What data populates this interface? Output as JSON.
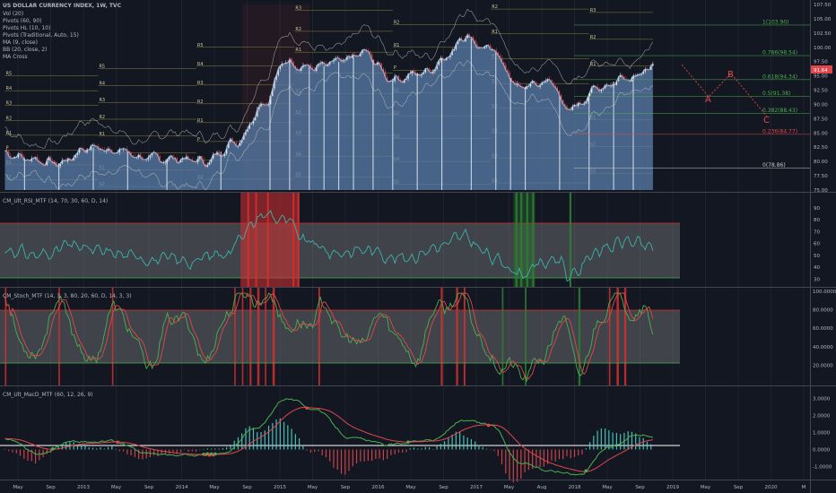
{
  "colors": {
    "background": "#131722",
    "grid": "#2a2e39",
    "price_fill": "#5a7eaa",
    "price_line": "#9cb6d6",
    "candle_up": "#e6e6e6",
    "candle_down": "#e0474c",
    "pivot_line": "#b5a642",
    "fib_green": "#4caf50",
    "fib_red": "#e0474c",
    "rsi_line": "#3bb3a9",
    "stoch_k": "#4caf50",
    "stoch_d": "#e0474c",
    "macd_line": "#4caf50",
    "signal_line": "#e0474c",
    "hist_up": "#4dd0c4",
    "hist_down": "#e0474c",
    "zone_red": "#d32f2f",
    "zone_green": "#2e7d32"
  },
  "header": {
    "title": "US DOLLAR CURRENCY INDEX, 1W, TVC",
    "indicators": [
      "Vol (20)",
      "Pivots (60, 90)",
      "Pivots HL (10, 10)",
      "Pivots (Traditional, Auto, 15)",
      "MA (9, close)",
      "BB (20, close, 2)",
      "MA Cross"
    ]
  },
  "panes": {
    "rsi_title": "CM_Ult_RSI_MTF (14, 70, 30, 60, D, 14)",
    "stoch_title": "CM_Stoch_MTF (14, 3, 3, 80, 20, 60, D, 14, 3, 3)",
    "macd_title": "CM_Ult_MacD_MTF (60, 12, 26, 9)"
  },
  "price_axis": {
    "ticks": [
      "107.50",
      "105.00",
      "102.50",
      "100.00",
      "97.50",
      "95.00",
      "92.50",
      "90.00",
      "87.50",
      "85.00",
      "82.50",
      "80.00",
      "77.50",
      "75.00"
    ],
    "current": "91.64"
  },
  "rsi_axis": {
    "ticks": [
      "90",
      "80",
      "70",
      "60",
      "50",
      "40",
      "30"
    ]
  },
  "stoch_axis": {
    "ticks": [
      "100.0000",
      "80.0000",
      "60.0000",
      "40.0000",
      "20.0000"
    ]
  },
  "macd_axis": {
    "ticks": [
      "3.0000",
      "2.0000",
      "1.0000",
      "0.0000",
      "-1.0000"
    ]
  },
  "time_axis": {
    "labels": [
      "May",
      "Sep",
      "2013",
      "May",
      "Sep",
      "2014",
      "May",
      "Sep",
      "2015",
      "May",
      "Sep",
      "2016",
      "May",
      "Sep",
      "2017",
      "May",
      "Aug",
      "2018",
      "May",
      "Sep",
      "2019",
      "May",
      "Sep",
      "2020",
      "M"
    ]
  },
  "fib_labels": [
    "1(103.90)",
    "0.786(98.54)",
    "0.618(94.34)",
    "0.5(91.38)",
    "0.382(88.43)",
    "0.236(84.77)",
    "0(78.86)"
  ],
  "wave_labels": [
    "A",
    "B",
    "C"
  ],
  "pivot_labels": [
    "R5",
    "R4",
    "R3",
    "R2",
    "R1",
    "P",
    "S1",
    "S2",
    "S3",
    "S4",
    "S5"
  ],
  "chart_data": [
    {
      "type": "line",
      "title": "US DOLLAR CURRENCY INDEX, 1W, TVC",
      "x": [
        2012.35,
        2012.6,
        2012.9,
        2013.2,
        2013.5,
        2013.8,
        2014.1,
        2014.4,
        2014.7,
        2015.0,
        2015.2,
        2015.5,
        2015.8,
        2016.0,
        2016.3,
        2016.6,
        2016.9,
        2017.0,
        2017.3,
        2017.6,
        2017.9,
        2018.1,
        2018.4,
        2018.7,
        2018.95
      ],
      "series": [
        {
          "values": [
            81.5,
            80.5,
            79.7,
            82.5,
            82.0,
            80.5,
            80.5,
            80.0,
            83.5,
            90.5,
            97.5,
            96.5,
            97.5,
            99.0,
            94.5,
            95.5,
            99.0,
            102.2,
            99.5,
            93.0,
            94.0,
            89.0,
            93.0,
            95.0,
            96.3
          ]
        }
      ],
      "ylim": [
        75,
        107.5
      ],
      "fib_levels": [
        {
          "ratio": 1,
          "value": 103.9
        },
        {
          "ratio": 0.786,
          "value": 98.54
        },
        {
          "ratio": 0.618,
          "value": 94.34
        },
        {
          "ratio": 0.5,
          "value": 91.38
        },
        {
          "ratio": 0.382,
          "value": 88.43
        },
        {
          "ratio": 0.236,
          "value": 84.77
        },
        {
          "ratio": 0,
          "value": 78.86
        }
      ]
    },
    {
      "type": "line",
      "title": "CM_Ult_RSI_MTF (14, 70, 30, 60, D, 14)",
      "x": [
        2012.35,
        2012.7,
        2013.0,
        2013.4,
        2013.8,
        2014.2,
        2014.6,
        2014.8,
        2015.0,
        2015.2,
        2015.4,
        2015.7,
        2016.0,
        2016.4,
        2016.8,
        2017.0,
        2017.4,
        2017.6,
        2017.8,
        2018.0,
        2018.1,
        2018.4,
        2018.7,
        2018.95
      ],
      "series": [
        {
          "values": [
            55,
            50,
            58,
            52,
            48,
            45,
            52,
            72,
            85,
            80,
            62,
            52,
            55,
            48,
            58,
            65,
            45,
            35,
            42,
            48,
            32,
            55,
            62,
            55
          ]
        }
      ],
      "ylim": [
        25,
        90
      ],
      "bands": [
        70,
        30
      ]
    },
    {
      "type": "line",
      "title": "CM_Stoch_MTF (14, 3, 3, 80, 20, 60, D, 14, 3, 3)",
      "x": [
        2012.35,
        2012.6,
        2012.9,
        2013.2,
        2013.5,
        2013.8,
        2014.1,
        2014.4,
        2014.7,
        2015.0,
        2015.3,
        2015.6,
        2015.9,
        2016.2,
        2016.5,
        2016.8,
        2017.0,
        2017.3,
        2017.6,
        2017.8,
        2018.0,
        2018.2,
        2018.5,
        2018.8,
        2018.95
      ],
      "series": [
        {
          "values": [
            90,
            30,
            85,
            25,
            80,
            20,
            75,
            30,
            92,
            95,
            60,
            80,
            40,
            70,
            30,
            85,
            90,
            30,
            10,
            20,
            70,
            15,
            90,
            85,
            60
          ]
        }
      ],
      "ylim": [
        0,
        100
      ],
      "bands": [
        80,
        20
      ]
    },
    {
      "type": "line",
      "title": "CM_Ult_MacD_MTF (60, 12, 26, 9)",
      "x": [
        2012.35,
        2012.7,
        2013.0,
        2013.4,
        2013.8,
        2014.2,
        2014.6,
        2014.9,
        2015.2,
        2015.5,
        2015.9,
        2016.3,
        2016.7,
        2017.0,
        2017.3,
        2017.6,
        2017.9,
        2018.2,
        2018.5,
        2018.8,
        2018.95
      ],
      "series": [
        {
          "values": [
            0.6,
            -0.2,
            0.4,
            0.5,
            -0.2,
            -0.4,
            -0.2,
            1.2,
            3.0,
            2.4,
            0.6,
            0.3,
            0.6,
            1.6,
            1.5,
            -0.8,
            -1.2,
            -1.5,
            0.2,
            0.8,
            0.8
          ]
        }
      ],
      "ylim": [
        -1.5,
        3.5
      ]
    }
  ]
}
